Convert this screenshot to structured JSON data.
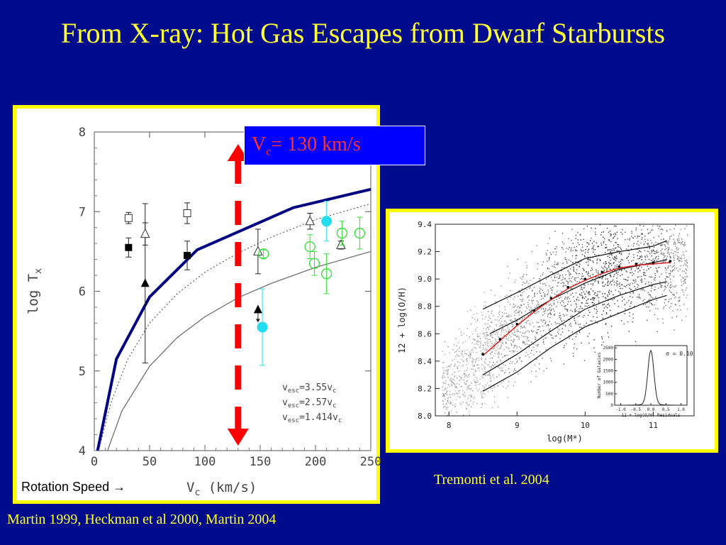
{
  "slide": {
    "title": "From X-ray: Hot Gas Escapes from Dwarf Starbursts",
    "left_caption": "Martin 1999, Heckman et al 2000, Martin 2004",
    "right_caption": "Tremonti et al. 2004",
    "rotation_label": "Rotation Speed →",
    "vc_box": {
      "prefix": "V",
      "sub": "c",
      "suffix": "= 130 km/s"
    },
    "arrow_color": "#ff0000",
    "curve_color": "#000080"
  },
  "chart_data": [
    {
      "type": "scatter",
      "xlabel": "Vc (km/s)",
      "ylabel": "log Tx",
      "xlim": [
        0,
        250
      ],
      "ylim": [
        4,
        8
      ],
      "xticks": [
        0,
        50,
        100,
        150,
        200,
        250
      ],
      "yticks": [
        4,
        5,
        6,
        7,
        8
      ],
      "marker_x": 130,
      "legend": [
        "vesc=3.55vc",
        "vesc=2.57vc",
        "vesc=1.414vc"
      ],
      "series": [
        {
          "marker": "filled-square",
          "points": [
            [
              31,
              6.55,
              0.12
            ],
            [
              84,
              6.45,
              0.18
            ]
          ]
        },
        {
          "marker": "open-square",
          "points": [
            [
              31,
              6.92,
              0.07
            ],
            [
              84,
              6.98,
              0.13
            ]
          ]
        },
        {
          "marker": "filled-triangle",
          "points": [
            [
              46,
              6.1,
              1.0
            ],
            [
              148,
              5.77,
              0.0
            ]
          ]
        },
        {
          "marker": "open-triangle",
          "points": [
            [
              46,
              6.72,
              0.14
            ],
            [
              148,
              6.5,
              0.28
            ],
            [
              195,
              6.88,
              0.1
            ],
            [
              223,
              6.58,
              0.05
            ]
          ]
        },
        {
          "marker": "open-circle-green",
          "points": [
            [
              153,
              6.47,
              0.05
            ],
            [
              195,
              6.56,
              0.15
            ],
            [
              199,
              6.35,
              0.15
            ],
            [
              210,
              6.22,
              0.25
            ],
            [
              224,
              6.73,
              0.15
            ],
            [
              240,
              6.73,
              0.2
            ]
          ]
        },
        {
          "marker": "filled-circle-cyan",
          "points": [
            [
              152,
              5.55,
              0.48
            ],
            [
              210,
              6.88,
              0.25
            ]
          ]
        }
      ],
      "lines": [
        {
          "name": "vesc=3.55vc",
          "style": "thick",
          "points": [
            [
              3,
              4.0
            ],
            [
              20,
              5.15
            ],
            [
              50,
              5.93
            ],
            [
              93,
              6.52
            ],
            [
              180,
              7.05
            ],
            [
              250,
              7.28
            ]
          ]
        },
        {
          "name": "vesc=2.57vc",
          "style": "dotted",
          "points": [
            [
              4,
              4.0
            ],
            [
              15,
              4.6
            ],
            [
              30,
              5.14
            ],
            [
              50,
              5.6
            ],
            [
              75,
              5.97
            ],
            [
              100,
              6.24
            ],
            [
              130,
              6.48
            ],
            [
              160,
              6.68
            ],
            [
              200,
              6.9
            ],
            [
              250,
              7.1
            ]
          ]
        },
        {
          "name": "vesc=1.414vc",
          "style": "solid",
          "points": [
            [
              12,
              4.0
            ],
            [
              25,
              4.5
            ],
            [
              50,
              5.06
            ],
            [
              75,
              5.42
            ],
            [
              100,
              5.68
            ],
            [
              130,
              5.92
            ],
            [
              160,
              6.1
            ],
            [
              200,
              6.3
            ],
            [
              250,
              6.5
            ]
          ]
        }
      ]
    },
    {
      "type": "scatter",
      "xlabel": "log(M*)",
      "ylabel": "12 + log(O/H)",
      "xlim": [
        7.8,
        11.6
      ],
      "ylim": [
        8.0,
        9.4
      ],
      "xticks": [
        8,
        9,
        10,
        11
      ],
      "yticks": [
        8.0,
        8.2,
        8.4,
        8.6,
        8.8,
        9.0,
        9.2,
        9.4
      ],
      "fit": {
        "x": [
          8.5,
          8.75,
          9.0,
          9.25,
          9.5,
          9.75,
          10.0,
          10.25,
          10.5,
          10.75,
          11.0,
          11.25
        ],
        "y": [
          8.44,
          8.55,
          8.66,
          8.76,
          8.85,
          8.93,
          8.99,
          9.04,
          9.08,
          9.1,
          9.11,
          9.12
        ]
      },
      "contours": [
        {
          "x": [
            8.5,
            9.0,
            9.5,
            10.0,
            10.5,
            11.0,
            11.2
          ],
          "y": [
            8.18,
            8.32,
            8.5,
            8.65,
            8.75,
            8.85,
            8.88
          ]
        },
        {
          "x": [
            8.5,
            9.0,
            9.5,
            10.0,
            10.5,
            11.0,
            11.2
          ],
          "y": [
            8.3,
            8.45,
            8.62,
            8.78,
            8.88,
            8.96,
            8.98
          ]
        },
        {
          "x": [
            8.6,
            9.0,
            9.5,
            10.0,
            10.5,
            11.0,
            11.2
          ],
          "y": [
            8.6,
            8.7,
            8.85,
            8.97,
            9.07,
            9.12,
            9.14
          ]
        },
        {
          "x": [
            8.5,
            9.0,
            9.5,
            10.0,
            10.5,
            11.0,
            11.2
          ],
          "y": [
            8.78,
            8.9,
            9.03,
            9.15,
            9.2,
            9.24,
            9.28
          ]
        }
      ],
      "inset": {
        "xlabel": "12 + log(O/H) Residuals",
        "ylabel": "Number of Galaxies",
        "annotation": "σ = 0.10",
        "xticks": [
          -1.0,
          -0.5,
          0.0,
          0.5,
          1.0
        ],
        "yticks": [
          0,
          500,
          1000,
          1500,
          2000,
          2500
        ]
      }
    }
  ]
}
